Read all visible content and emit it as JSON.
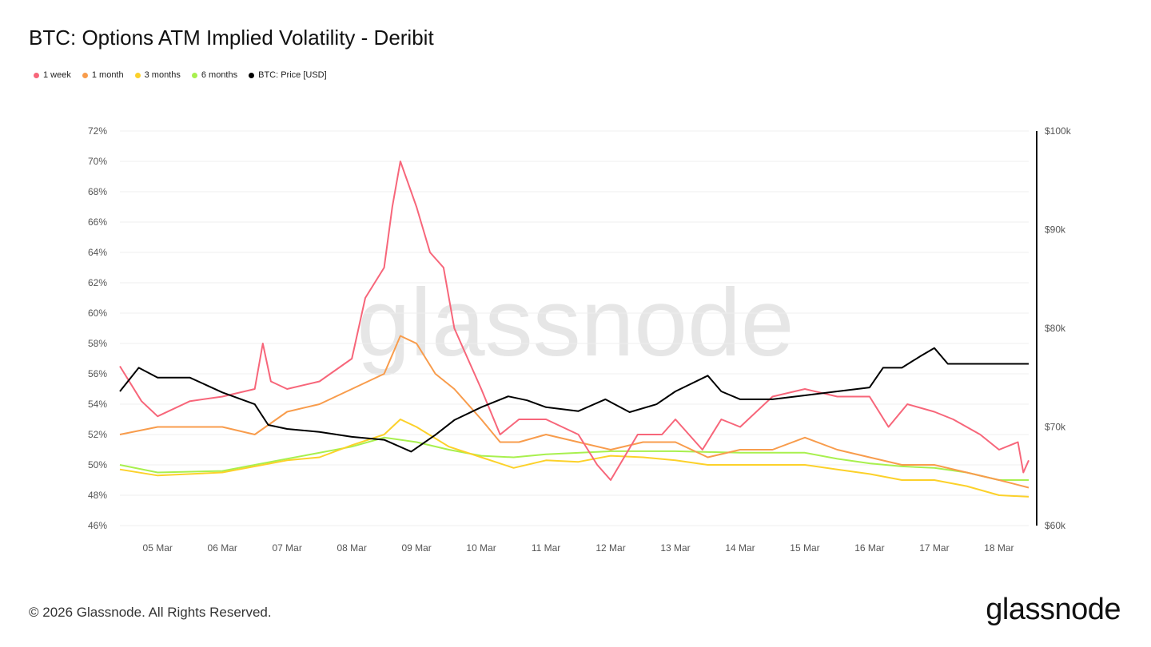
{
  "title": "BTC: Options ATM Implied Volatility - Deribit",
  "footer": "© 2026 Glassnode. All Rights Reserved.",
  "logo": "glassnode",
  "watermark": "glassnode",
  "chart_data": {
    "type": "line",
    "title": "BTC: Options ATM Implied Volatility - Deribit",
    "grid": true,
    "legend_placement": "top-left",
    "x_range": [
      "2026-03-04T10:00",
      "2026-03-18T11:00"
    ],
    "x_ticks": [
      "05 Mar",
      "06 Mar",
      "07 Mar",
      "08 Mar",
      "09 Mar",
      "10 Mar",
      "11 Mar",
      "12 Mar",
      "13 Mar",
      "14 Mar",
      "15 Mar",
      "16 Mar",
      "17 Mar",
      "18 Mar"
    ],
    "x_tick_dates": [
      "2026-03-05",
      "2026-03-06",
      "2026-03-07",
      "2026-03-08",
      "2026-03-09",
      "2026-03-10",
      "2026-03-11",
      "2026-03-12",
      "2026-03-13",
      "2026-03-14",
      "2026-03-15",
      "2026-03-16",
      "2026-03-17",
      "2026-03-18"
    ],
    "y_left": {
      "range": [
        46,
        72
      ],
      "ticks": [
        "46%",
        "48%",
        "50%",
        "52%",
        "54%",
        "56%",
        "58%",
        "60%",
        "62%",
        "64%",
        "66%",
        "68%",
        "70%",
        "72%"
      ],
      "tick_values": [
        46,
        48,
        50,
        52,
        54,
        56,
        58,
        60,
        62,
        64,
        66,
        68,
        70,
        72
      ]
    },
    "y_right": {
      "range": [
        60000,
        100000
      ],
      "ticks": [
        "$60k",
        "$70k",
        "$80k",
        "$90k",
        "$100k"
      ],
      "tick_values": [
        60000,
        70000,
        80000,
        90000,
        100000
      ]
    },
    "series": [
      {
        "name": "1 week",
        "color": "#f7667a",
        "axis": "left",
        "points": [
          [
            "2026-03-04T10:00",
            56.5
          ],
          [
            "2026-03-04T18:00",
            54.2
          ],
          [
            "2026-03-05T00:00",
            53.2
          ],
          [
            "2026-03-05T12:00",
            54.2
          ],
          [
            "2026-03-06T00:00",
            54.5
          ],
          [
            "2026-03-06T12:00",
            55
          ],
          [
            "2026-03-06T15:00",
            58
          ],
          [
            "2026-03-06T18:00",
            55.5
          ],
          [
            "2026-03-07T00:00",
            55
          ],
          [
            "2026-03-07T12:00",
            55.5
          ],
          [
            "2026-03-08T00:00",
            57
          ],
          [
            "2026-03-08T05:00",
            61
          ],
          [
            "2026-03-08T12:00",
            63
          ],
          [
            "2026-03-08T15:00",
            67
          ],
          [
            "2026-03-08T18:00",
            70
          ],
          [
            "2026-03-09T00:00",
            67
          ],
          [
            "2026-03-09T05:00",
            64
          ],
          [
            "2026-03-09T10:00",
            63
          ],
          [
            "2026-03-09T14:00",
            59
          ],
          [
            "2026-03-09T19:00",
            57
          ],
          [
            "2026-03-10T00:00",
            55
          ],
          [
            "2026-03-10T07:00",
            52
          ],
          [
            "2026-03-10T14:00",
            53
          ],
          [
            "2026-03-11T00:00",
            53
          ],
          [
            "2026-03-11T12:00",
            52
          ],
          [
            "2026-03-11T19:00",
            50
          ],
          [
            "2026-03-12T00:00",
            49
          ],
          [
            "2026-03-12T10:00",
            52
          ],
          [
            "2026-03-12T19:00",
            52
          ],
          [
            "2026-03-13T00:00",
            53
          ],
          [
            "2026-03-13T10:00",
            51
          ],
          [
            "2026-03-13T17:00",
            53
          ],
          [
            "2026-03-14T00:00",
            52.5
          ],
          [
            "2026-03-14T12:00",
            54.5
          ],
          [
            "2026-03-15T00:00",
            55
          ],
          [
            "2026-03-15T12:00",
            54.5
          ],
          [
            "2026-03-16T00:00",
            54.5
          ],
          [
            "2026-03-16T07:00",
            52.5
          ],
          [
            "2026-03-16T14:00",
            54
          ],
          [
            "2026-03-17T00:00",
            53.5
          ],
          [
            "2026-03-17T07:00",
            53
          ],
          [
            "2026-03-17T17:00",
            52
          ],
          [
            "2026-03-18T00:00",
            51
          ],
          [
            "2026-03-18T07:00",
            51.5
          ],
          [
            "2026-03-18T09:00",
            49.5
          ],
          [
            "2026-03-18T11:00",
            50.3
          ]
        ]
      },
      {
        "name": "1 month",
        "color": "#f89c4c",
        "axis": "left",
        "points": [
          [
            "2026-03-04T10:00",
            52
          ],
          [
            "2026-03-05T00:00",
            52.5
          ],
          [
            "2026-03-06T00:00",
            52.5
          ],
          [
            "2026-03-06T12:00",
            52
          ],
          [
            "2026-03-07T00:00",
            53.5
          ],
          [
            "2026-03-07T12:00",
            54
          ],
          [
            "2026-03-08T00:00",
            55
          ],
          [
            "2026-03-08T12:00",
            56
          ],
          [
            "2026-03-08T18:00",
            58.5
          ],
          [
            "2026-03-09T00:00",
            58
          ],
          [
            "2026-03-09T07:00",
            56
          ],
          [
            "2026-03-09T14:00",
            55
          ],
          [
            "2026-03-10T00:00",
            53
          ],
          [
            "2026-03-10T07:00",
            51.5
          ],
          [
            "2026-03-10T14:00",
            51.5
          ],
          [
            "2026-03-11T00:00",
            52
          ],
          [
            "2026-03-11T12:00",
            51.5
          ],
          [
            "2026-03-12T00:00",
            51
          ],
          [
            "2026-03-12T12:00",
            51.5
          ],
          [
            "2026-03-13T00:00",
            51.5
          ],
          [
            "2026-03-13T12:00",
            50.5
          ],
          [
            "2026-03-14T00:00",
            51
          ],
          [
            "2026-03-14T12:00",
            51
          ],
          [
            "2026-03-15T00:00",
            51.8
          ],
          [
            "2026-03-15T12:00",
            51
          ],
          [
            "2026-03-16T00:00",
            50.5
          ],
          [
            "2026-03-16T12:00",
            50
          ],
          [
            "2026-03-17T00:00",
            50
          ],
          [
            "2026-03-17T12:00",
            49.5
          ],
          [
            "2026-03-18T00:00",
            49
          ],
          [
            "2026-03-18T11:00",
            48.5
          ]
        ]
      },
      {
        "name": "3 months",
        "color": "#fcd12a",
        "axis": "left",
        "points": [
          [
            "2026-03-04T10:00",
            49.7
          ],
          [
            "2026-03-05T00:00",
            49.3
          ],
          [
            "2026-03-06T00:00",
            49.5
          ],
          [
            "2026-03-07T00:00",
            50.3
          ],
          [
            "2026-03-07T12:00",
            50.5
          ],
          [
            "2026-03-08T00:00",
            51.3
          ],
          [
            "2026-03-08T12:00",
            52
          ],
          [
            "2026-03-08T18:00",
            53
          ],
          [
            "2026-03-09T00:00",
            52.5
          ],
          [
            "2026-03-09T12:00",
            51.2
          ],
          [
            "2026-03-10T00:00",
            50.5
          ],
          [
            "2026-03-10T12:00",
            49.8
          ],
          [
            "2026-03-11T00:00",
            50.3
          ],
          [
            "2026-03-11T12:00",
            50.2
          ],
          [
            "2026-03-12T00:00",
            50.6
          ],
          [
            "2026-03-12T12:00",
            50.5
          ],
          [
            "2026-03-13T00:00",
            50.3
          ],
          [
            "2026-03-13T12:00",
            50
          ],
          [
            "2026-03-14T00:00",
            50
          ],
          [
            "2026-03-15T00:00",
            50
          ],
          [
            "2026-03-15T12:00",
            49.7
          ],
          [
            "2026-03-16T00:00",
            49.4
          ],
          [
            "2026-03-16T12:00",
            49
          ],
          [
            "2026-03-17T00:00",
            49
          ],
          [
            "2026-03-17T12:00",
            48.6
          ],
          [
            "2026-03-18T00:00",
            48
          ],
          [
            "2026-03-18T11:00",
            47.9
          ]
        ]
      },
      {
        "name": "6 months",
        "color": "#a8f04e",
        "axis": "left",
        "points": [
          [
            "2026-03-04T10:00",
            50
          ],
          [
            "2026-03-05T00:00",
            49.5
          ],
          [
            "2026-03-06T00:00",
            49.6
          ],
          [
            "2026-03-07T00:00",
            50.4
          ],
          [
            "2026-03-08T00:00",
            51.2
          ],
          [
            "2026-03-08T12:00",
            51.8
          ],
          [
            "2026-03-09T00:00",
            51.5
          ],
          [
            "2026-03-09T12:00",
            51
          ],
          [
            "2026-03-10T00:00",
            50.6
          ],
          [
            "2026-03-10T12:00",
            50.5
          ],
          [
            "2026-03-11T00:00",
            50.7
          ],
          [
            "2026-03-12T00:00",
            50.9
          ],
          [
            "2026-03-13T00:00",
            50.9
          ],
          [
            "2026-03-14T00:00",
            50.8
          ],
          [
            "2026-03-15T00:00",
            50.8
          ],
          [
            "2026-03-15T12:00",
            50.4
          ],
          [
            "2026-03-16T00:00",
            50.1
          ],
          [
            "2026-03-16T12:00",
            49.9
          ],
          [
            "2026-03-17T00:00",
            49.8
          ],
          [
            "2026-03-17T12:00",
            49.5
          ],
          [
            "2026-03-18T00:00",
            49
          ],
          [
            "2026-03-18T11:00",
            49
          ]
        ]
      },
      {
        "name": "BTC: Price [USD]",
        "color": "#000000",
        "axis": "right",
        "points": [
          [
            "2026-03-04T10:00",
            73600
          ],
          [
            "2026-03-04T17:00",
            76000
          ],
          [
            "2026-03-05T00:00",
            75000
          ],
          [
            "2026-03-05T12:00",
            75000
          ],
          [
            "2026-03-06T00:00",
            73500
          ],
          [
            "2026-03-06T12:00",
            72300
          ],
          [
            "2026-03-06T17:00",
            70200
          ],
          [
            "2026-03-07T00:00",
            69800
          ],
          [
            "2026-03-07T12:00",
            69500
          ],
          [
            "2026-03-08T00:00",
            69000
          ],
          [
            "2026-03-08T12:00",
            68700
          ],
          [
            "2026-03-08T22:00",
            67500
          ],
          [
            "2026-03-09T07:00",
            69200
          ],
          [
            "2026-03-09T14:00",
            70700
          ],
          [
            "2026-03-10T00:00",
            72000
          ],
          [
            "2026-03-10T10:00",
            73100
          ],
          [
            "2026-03-10T17:00",
            72700
          ],
          [
            "2026-03-11T00:00",
            72000
          ],
          [
            "2026-03-11T12:00",
            71600
          ],
          [
            "2026-03-11T22:00",
            72800
          ],
          [
            "2026-03-12T07:00",
            71500
          ],
          [
            "2026-03-12T17:00",
            72300
          ],
          [
            "2026-03-13T00:00",
            73600
          ],
          [
            "2026-03-13T12:00",
            75200
          ],
          [
            "2026-03-13T17:00",
            73600
          ],
          [
            "2026-03-14T00:00",
            72800
          ],
          [
            "2026-03-14T12:00",
            72800
          ],
          [
            "2026-03-15T00:00",
            73200
          ],
          [
            "2026-03-15T12:00",
            73600
          ],
          [
            "2026-03-16T00:00",
            74000
          ],
          [
            "2026-03-16T05:00",
            76000
          ],
          [
            "2026-03-16T12:00",
            76000
          ],
          [
            "2026-03-16T19:00",
            77200
          ],
          [
            "2026-03-17T00:00",
            78000
          ],
          [
            "2026-03-17T05:00",
            76400
          ],
          [
            "2026-03-17T12:00",
            76400
          ],
          [
            "2026-03-18T00:00",
            76400
          ],
          [
            "2026-03-18T11:00",
            76400
          ]
        ]
      }
    ]
  }
}
